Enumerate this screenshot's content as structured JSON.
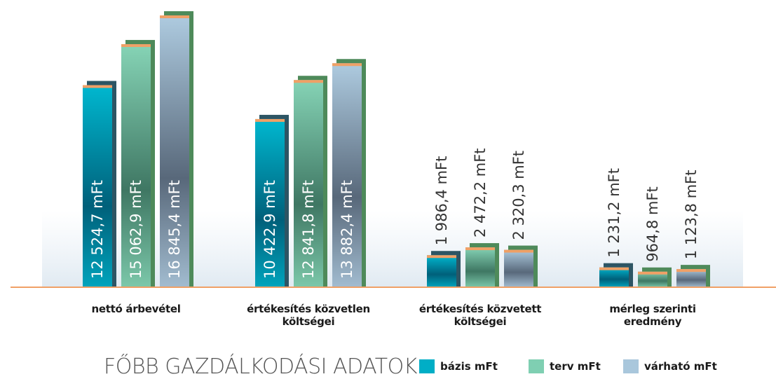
{
  "chart_data": {
    "type": "bar",
    "title": "FŐBB GAZDÁLKODÁSI ADATOK",
    "categories": [
      "nettó árbevétel",
      "értékesítés közvetlen költségei",
      "értékesítés közvetett költségei",
      "mérleg szerinti eredmény"
    ],
    "series": [
      {
        "name": "bázis mFt",
        "color": "#00aec6",
        "values": [
          12524.7,
          10422.9,
          1986.4,
          1231.2
        ],
        "value_labels": [
          "12 524,7 mFt",
          "10 422,9 mFt",
          "1 986,4 mFt",
          "1 231,2 mFt"
        ]
      },
      {
        "name": "terv mFt",
        "color": "#7fcfb2",
        "values": [
          15062.9,
          12841.8,
          2472.2,
          964.8
        ],
        "value_labels": [
          "15 062,9 mFt",
          "12 841,8 mFt",
          "2 472,2 mFt",
          "964,8 mFt"
        ]
      },
      {
        "name": "várható mFt",
        "color": "#a9c7dc",
        "values": [
          16845.4,
          13882.4,
          2320.3,
          1123.8
        ],
        "value_labels": [
          "16 845,4 mFt",
          "13 882,4 mFt",
          "2 320,3 mFt",
          "1 123,8 mFt"
        ]
      }
    ]
  }
}
